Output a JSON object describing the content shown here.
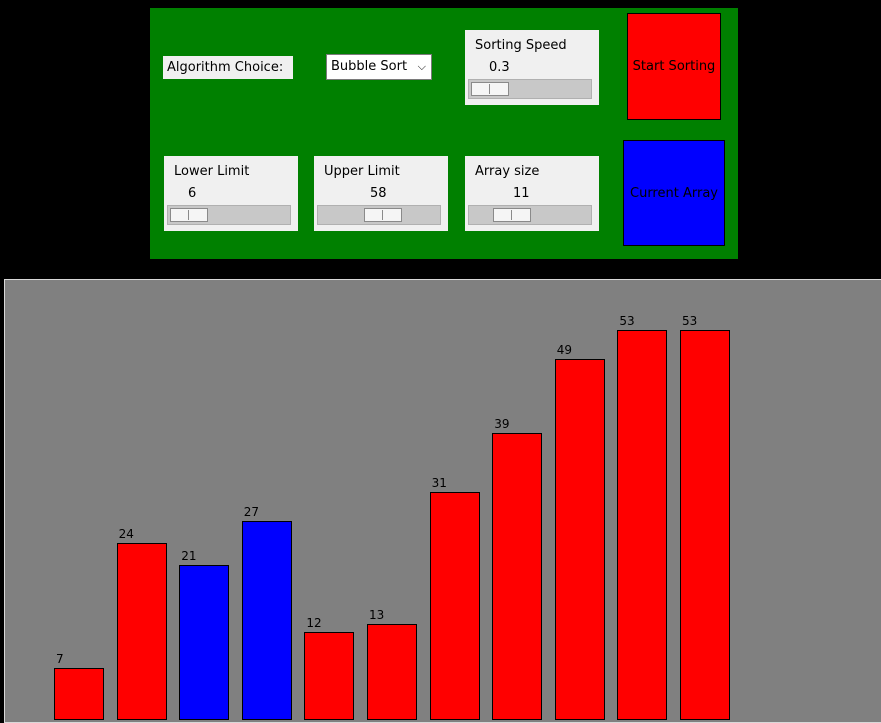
{
  "controls": {
    "algorithm_label": "Algorithm Choice:",
    "algorithm_selected": "Bubble Sort",
    "sorting_speed": {
      "label": "Sorting Speed",
      "value": "0.3",
      "fraction": 0.0
    },
    "lower_limit": {
      "label": "Lower Limit",
      "value": "6",
      "fraction": 0.0
    },
    "upper_limit": {
      "label": "Upper Limit",
      "value": "58",
      "fraction": 0.55
    },
    "array_size": {
      "label": "Array size",
      "value": "11",
      "fraction": 0.27
    },
    "start_button": "Start Sorting",
    "current_array_button": "Current Array"
  },
  "colors": {
    "panel": "#008000",
    "start_button": "#ff0000",
    "current_array_button": "#0000ff",
    "bar_default": "#ff0000",
    "bar_compare": "#0000ff",
    "canvas": "#808080"
  },
  "chart_data": {
    "type": "bar",
    "values": [
      7,
      24,
      21,
      27,
      12,
      13,
      31,
      39,
      49,
      53,
      53
    ],
    "highlighted": [
      2,
      3
    ],
    "ylim": [
      0,
      58
    ]
  }
}
